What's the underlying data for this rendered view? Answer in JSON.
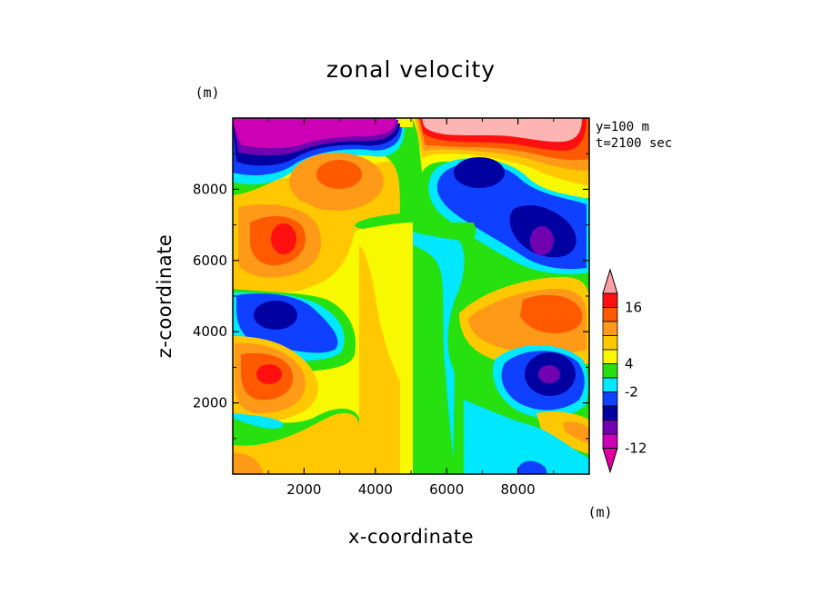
{
  "chart_data": {
    "type": "heatmap",
    "title": "zonal velocity",
    "xlabel": "x-coordinate",
    "ylabel": "z-coordinate",
    "x_unit": "(m)",
    "y_unit": "(m)",
    "xlim": [
      0,
      10000
    ],
    "ylim": [
      0,
      10000
    ],
    "x_ticks": [
      "2000",
      "4000",
      "6000",
      "8000"
    ],
    "y_ticks": [
      "2000",
      "4000",
      "6000",
      "8000"
    ],
    "annotations": [
      "y=100 m",
      "t=2100 sec"
    ],
    "colorbar": {
      "unit": "(m)",
      "labels": [
        "16",
        "4",
        "-2",
        "-12"
      ],
      "colors": [
        "#ff9ea6",
        "#ff1010",
        "#ff5a00",
        "#ff9a18",
        "#ffc800",
        "#f8f800",
        "#26e010",
        "#00e8ff",
        "#1040ff",
        "#0000a0",
        "#7000b0",
        "#cc00b4",
        "#e000a0"
      ],
      "extend": "both"
    },
    "color_scheme": {
      "bg_left_upper": "#26e010",
      "bg_right": "#26e010",
      "wall_left": "#f8f800"
    }
  }
}
